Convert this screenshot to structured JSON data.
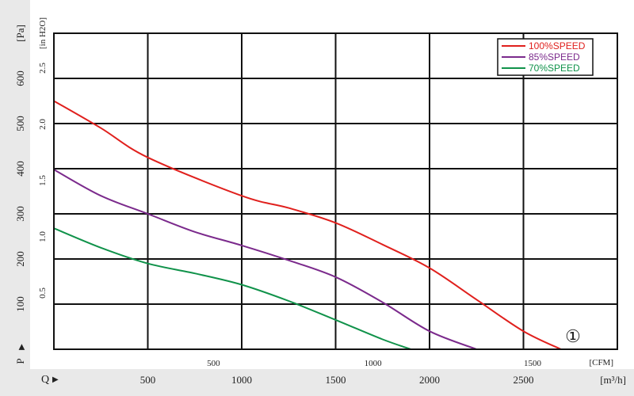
{
  "chart_data": {
    "type": "line",
    "title": "",
    "marker_label": "①",
    "y_axis_left": {
      "label": "[Pa]",
      "symbol": "P",
      "range": [
        0,
        700
      ],
      "ticks": [
        "100",
        "200",
        "300",
        "400",
        "500",
        "600"
      ]
    },
    "y_axis_inner": {
      "label": "[in H2O]",
      "ticks": [
        "0.5",
        "1.0",
        "1.5",
        "2.0",
        "2.5"
      ]
    },
    "x_axis_bottom": {
      "label": "[m³/h]",
      "symbol": "Q",
      "range": [
        0,
        3000
      ],
      "ticks": [
        "500",
        "1000",
        "1500",
        "2000",
        "2500"
      ]
    },
    "x_axis_inner": {
      "label": "[CFM]",
      "ticks": [
        "500",
        "1000",
        "1500"
      ]
    },
    "grid": true,
    "legend_position": "top-right",
    "series": [
      {
        "name": "100%SPEED",
        "color": "#e0201d",
        "x": [
          0,
          250,
          500,
          1000,
          1250,
          1500,
          1750,
          2000,
          2250,
          2500,
          2700
        ],
        "y": [
          550,
          490,
          425,
          340,
          313,
          280,
          232,
          180,
          110,
          40,
          0
        ]
      },
      {
        "name": "85%SPEED",
        "color": "#7b2a8c",
        "x": [
          0,
          250,
          500,
          750,
          1000,
          1250,
          1500,
          1750,
          2000,
          2250
        ],
        "y": [
          398,
          340,
          300,
          260,
          230,
          197,
          160,
          104,
          40,
          0
        ]
      },
      {
        "name": "70%SPEED",
        "color": "#10924a",
        "x": [
          0,
          250,
          500,
          750,
          1000,
          1250,
          1500,
          1750,
          1900
        ],
        "y": [
          268,
          225,
          190,
          168,
          143,
          107,
          65,
          22,
          0
        ]
      }
    ]
  }
}
